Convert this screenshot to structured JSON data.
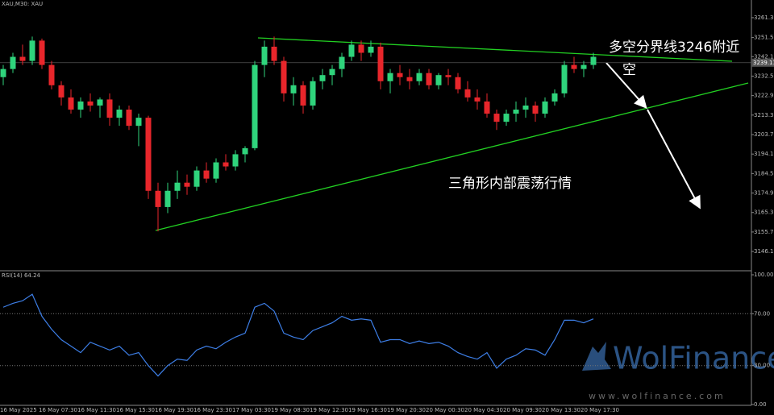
{
  "header": "XAU,M30: XAU",
  "annotations": {
    "line1": "多空分界线3246附近",
    "line2": "空",
    "triangle": "三角形内部震荡行情"
  },
  "watermark": {
    "brand": "WolFinance",
    "url": "www.wolfinance.com"
  },
  "chart_data": [
    {
      "type": "candlestick",
      "categories": [
        "16 May 2025",
        null,
        null,
        null,
        "16 May 07:30",
        null,
        null,
        null,
        "16 May 11:30",
        null,
        null,
        null,
        "16 May 15:30",
        null,
        null,
        null,
        "16 May 19:30",
        null,
        null,
        null,
        "16 May 23:30",
        null,
        null,
        null,
        "17 May 03:30",
        null,
        null,
        null,
        "19 May 08:30",
        null,
        null,
        null,
        "19 May 12:30",
        null,
        null,
        null,
        "19 May 16:30",
        null,
        null,
        null,
        "19 May 20:30",
        null,
        null,
        null,
        "20 May 00:30",
        null,
        null,
        null,
        "20 May 04:30",
        null,
        null,
        null,
        "20 May 09:30",
        null,
        null,
        null,
        "20 May 13:30",
        null,
        null,
        null,
        "20 May 17:30",
        null
      ],
      "open": [
        3232,
        3236,
        3242,
        3240,
        3250,
        3238,
        3228,
        3222,
        3216,
        3220,
        3218,
        3221,
        3212,
        3216,
        3208,
        3212,
        3176,
        3168,
        3176,
        3180,
        3178,
        3186,
        3182,
        3190,
        3188,
        3194,
        3197,
        3238,
        3247,
        3240,
        3224,
        3228,
        3218,
        3230,
        3233,
        3236,
        3242,
        3248,
        3244,
        3247,
        3230,
        3234,
        3232,
        3230,
        3234,
        3228,
        3233,
        3232,
        3226,
        3222,
        3220,
        3214,
        3210,
        3214,
        3216,
        3218,
        3214,
        3220,
        3224,
        3238,
        3236,
        3238
      ],
      "high": [
        3238,
        3244,
        3248,
        3252,
        3251,
        3240,
        3230,
        3226,
        3222,
        3224,
        3222,
        3224,
        3218,
        3218,
        3214,
        3213,
        3180,
        3180,
        3186,
        3184,
        3188,
        3190,
        3192,
        3194,
        3196,
        3198,
        3240,
        3250,
        3252,
        3242,
        3232,
        3230,
        3232,
        3236,
        3238,
        3244,
        3250,
        3250,
        3250,
        3249,
        3236,
        3238,
        3236,
        3236,
        3236,
        3234,
        3236,
        3234,
        3230,
        3226,
        3224,
        3216,
        3216,
        3220,
        3222,
        3220,
        3222,
        3226,
        3240,
        3242,
        3240,
        3244
      ],
      "low": [
        3228,
        3234,
        3238,
        3238,
        3236,
        3226,
        3218,
        3214,
        3212,
        3215,
        3212,
        3208,
        3208,
        3206,
        3198,
        3172,
        3156,
        3165,
        3172,
        3174,
        3176,
        3180,
        3180,
        3186,
        3186,
        3190,
        3196,
        3232,
        3238,
        3220,
        3218,
        3214,
        3216,
        3226,
        3228,
        3232,
        3240,
        3240,
        3242,
        3226,
        3224,
        3228,
        3226,
        3228,
        3226,
        3226,
        3228,
        3224,
        3220,
        3216,
        3212,
        3206,
        3208,
        3210,
        3212,
        3210,
        3212,
        3218,
        3222,
        3234,
        3232,
        3236
      ],
      "close": [
        3236,
        3242,
        3240,
        3250,
        3238,
        3228,
        3222,
        3216,
        3220,
        3218,
        3221,
        3212,
        3216,
        3208,
        3212,
        3176,
        3168,
        3176,
        3180,
        3178,
        3186,
        3182,
        3190,
        3188,
        3194,
        3197,
        3238,
        3247,
        3240,
        3224,
        3228,
        3218,
        3230,
        3233,
        3236,
        3242,
        3248,
        3244,
        3247,
        3230,
        3234,
        3232,
        3230,
        3234,
        3228,
        3233,
        3232,
        3226,
        3222,
        3220,
        3214,
        3210,
        3214,
        3216,
        3218,
        3214,
        3220,
        3224,
        3238,
        3236,
        3238,
        3242
      ],
      "up_color": "#2fd47c",
      "down_color": "#e8262b",
      "ylim": [
        3137,
        3270
      ],
      "yticks": [
        {
          "value": 3146.1,
          "label": "3146.10"
        },
        {
          "value": 3155.7,
          "label": "3155.70"
        },
        {
          "value": 3165.3,
          "label": "3165.30"
        },
        {
          "value": 3174.9,
          "label": "3174.90"
        },
        {
          "value": 3184.5,
          "label": "3184.50"
        },
        {
          "value": 3194.1,
          "label": "3194.10"
        },
        {
          "value": 3203.7,
          "label": "3203.70"
        },
        {
          "value": 3213.3,
          "label": "3213.30"
        },
        {
          "value": 3222.9,
          "label": "3222.90"
        },
        {
          "value": 3232.5,
          "label": "3232.50"
        },
        {
          "value": 3242.1,
          "label": "3242.10"
        },
        {
          "value": 3251.5,
          "label": "3251.50"
        },
        {
          "value": 3261.3,
          "label": "3261.30"
        }
      ],
      "last_price": {
        "value": 3239.11,
        "label": "3239.11"
      }
    },
    {
      "type": "line",
      "title": "RSI(14) 64.24",
      "color": "#3d7ee6",
      "values": [
        75,
        78,
        80,
        85,
        68,
        58,
        50,
        45,
        40,
        48,
        45,
        42,
        45,
        38,
        40,
        30,
        22,
        30,
        35,
        34,
        42,
        45,
        43,
        48,
        52,
        55,
        75,
        78,
        72,
        55,
        52,
        50,
        57,
        60,
        63,
        68,
        65,
        66,
        65,
        48,
        50,
        50,
        47,
        49,
        47,
        48,
        45,
        40,
        37,
        35,
        40,
        28,
        35,
        38,
        43,
        42,
        38,
        50,
        65,
        65,
        63,
        66
      ],
      "ylim": [
        0,
        100
      ],
      "yticks": [
        {
          "value": 0,
          "label": "0.00"
        },
        {
          "value": 30,
          "label": "30.00"
        },
        {
          "value": 70,
          "label": "70.00"
        },
        {
          "value": 100,
          "label": "100.00"
        }
      ],
      "levels": [
        30,
        70
      ]
    }
  ]
}
